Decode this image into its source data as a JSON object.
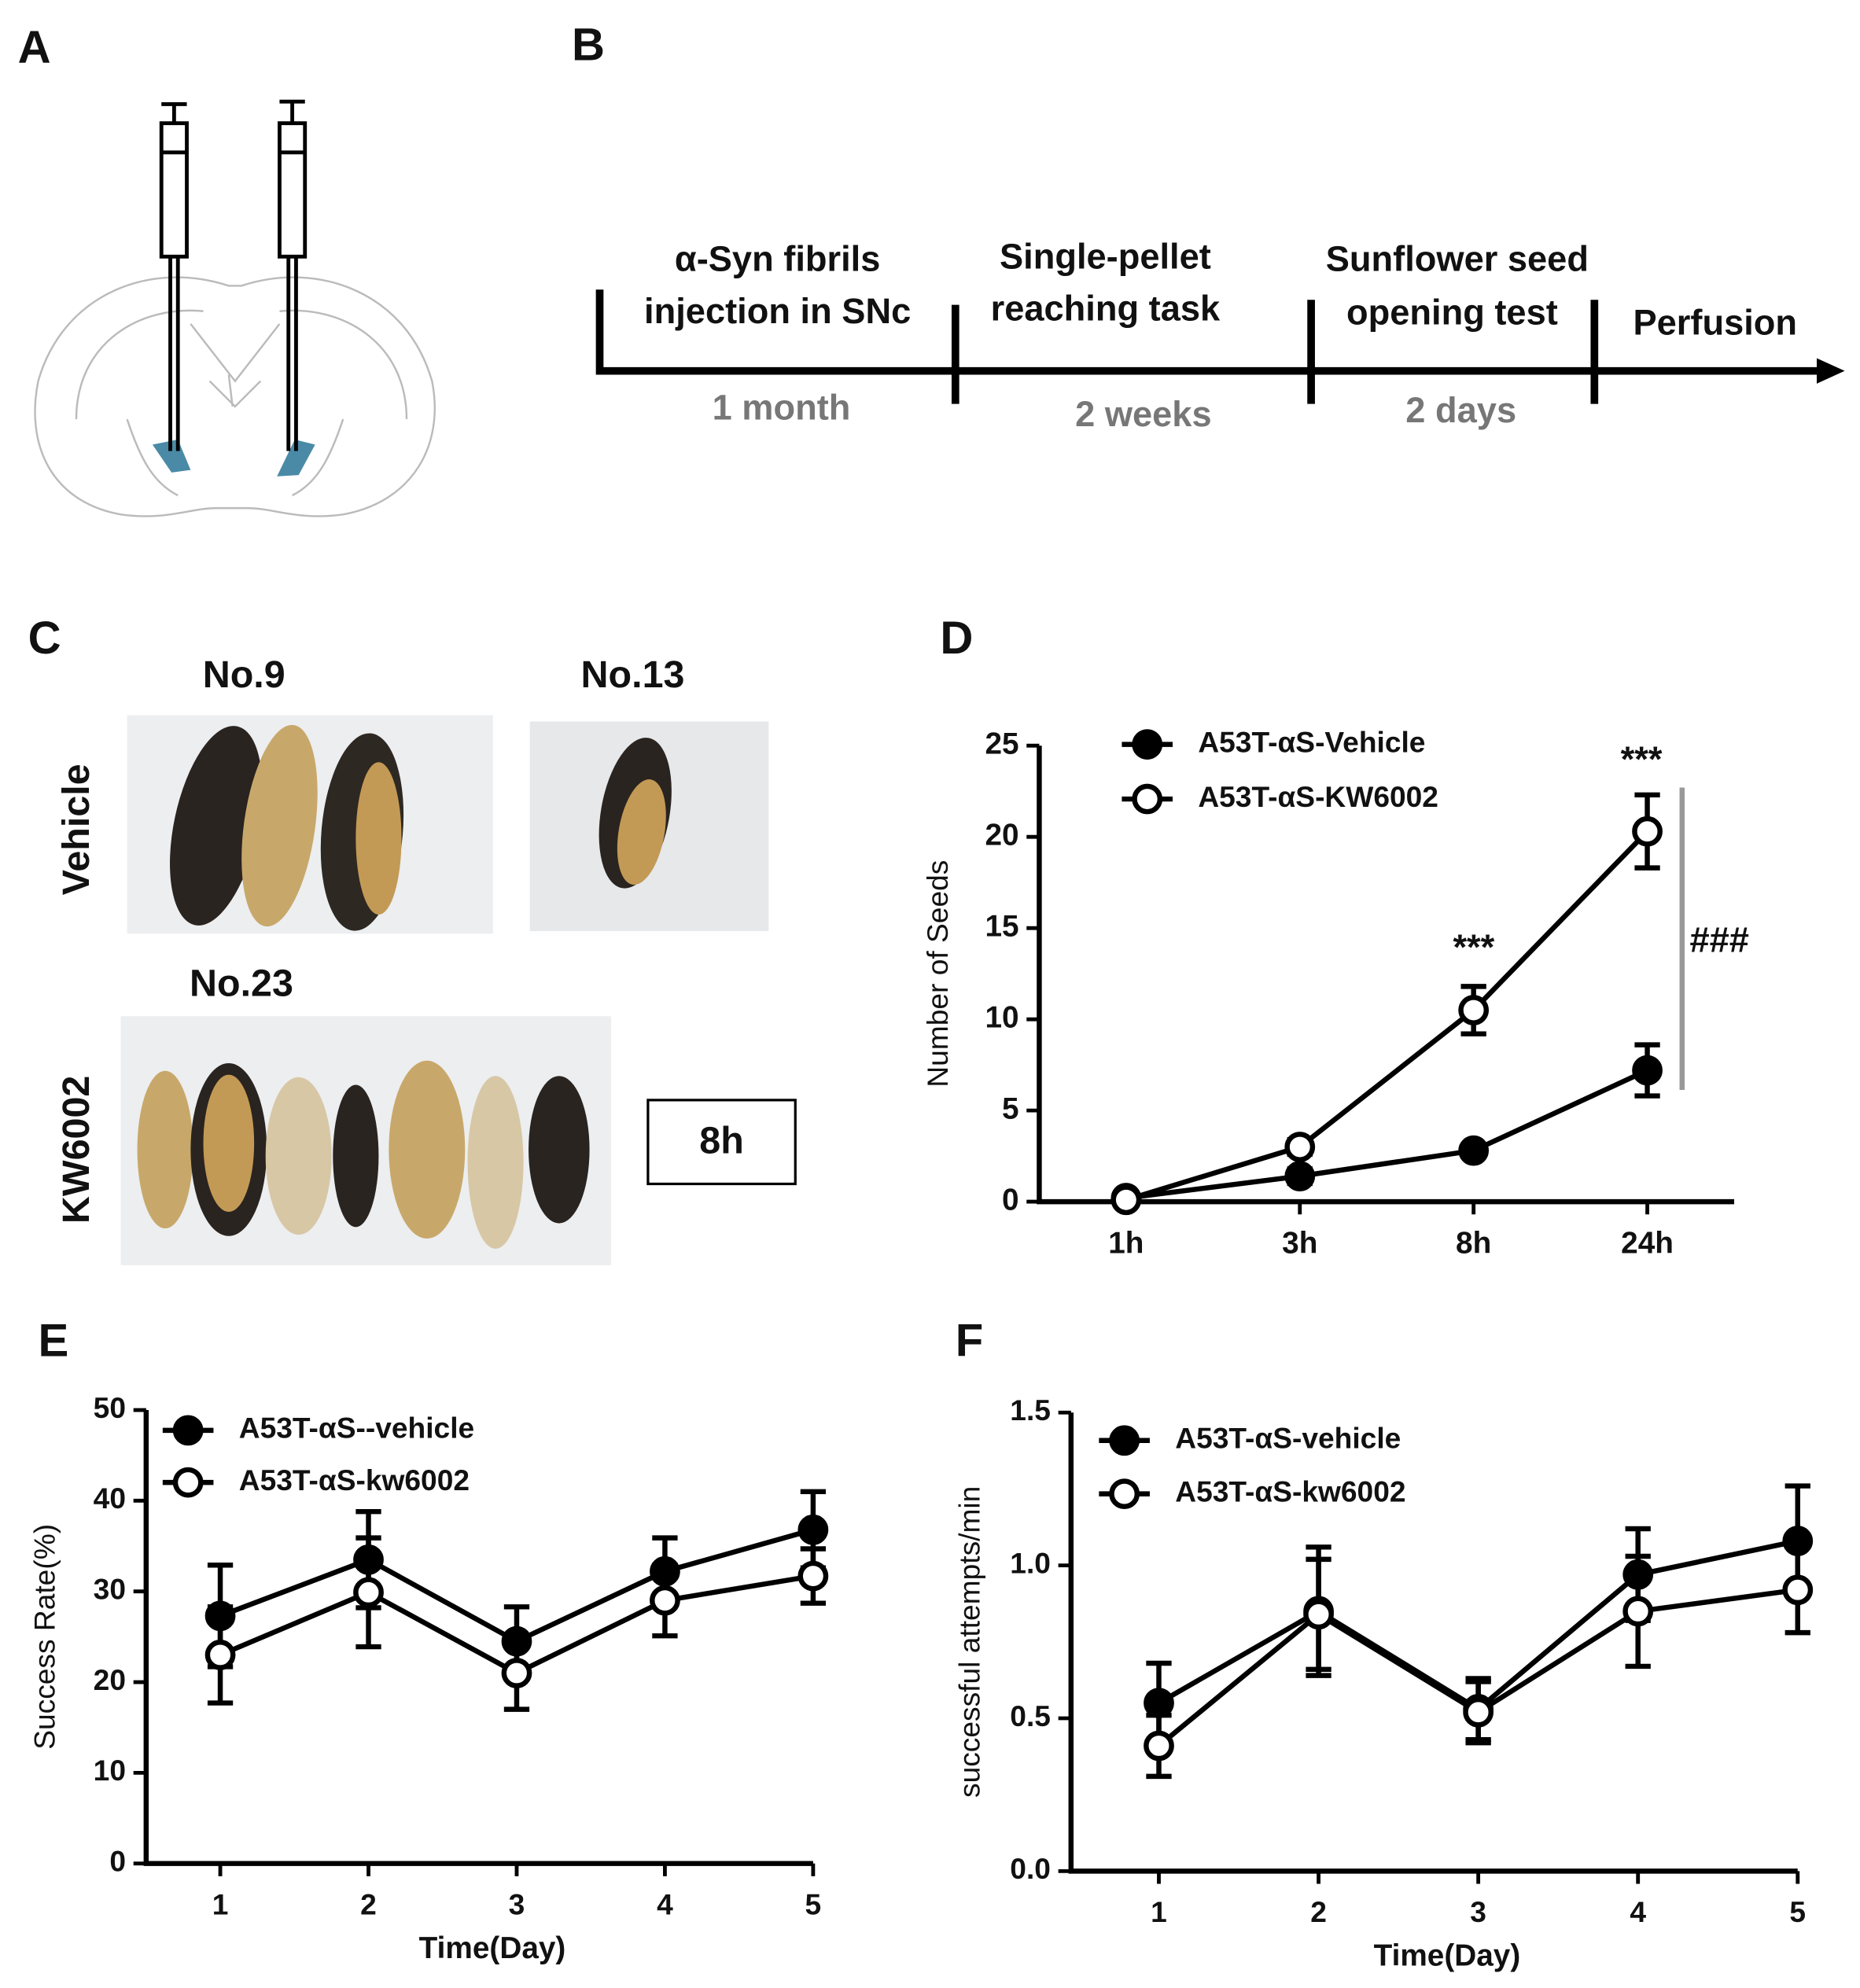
{
  "panels": {
    "a": "A",
    "b": "B",
    "c": "C",
    "d": "D",
    "e": "E",
    "f": "F"
  },
  "timeline": {
    "stages": [
      {
        "lines": [
          "α-Syn fibrils",
          "injection in SNc"
        ],
        "duration": "1 month"
      },
      {
        "lines": [
          "Single-pellet",
          "reaching task"
        ],
        "duration": "2 weeks"
      },
      {
        "lines": [
          "Sunflower seed",
          "opening test"
        ],
        "duration": "2 days"
      }
    ],
    "end": "Perfusion"
  },
  "photos": {
    "labels": [
      "No.9",
      "No.13",
      "No.23"
    ],
    "groups": [
      "Vehicle",
      "KW6002"
    ],
    "time": "8h"
  },
  "chart_data": [
    {
      "type": "line",
      "y_label": "Number of Seeds",
      "categories": [
        "1h",
        "3h",
        "8h",
        "24h"
      ],
      "ylim": [
        0,
        25
      ],
      "yticks": [
        0,
        5,
        10,
        15,
        20,
        25
      ],
      "series": [
        {
          "name": "A53T-αS-Vehicle",
          "color": "#000000",
          "marker": "filled",
          "values": [
            0.2,
            1.4,
            2.8,
            7.2
          ],
          "errors": [
            0.3,
            0.4,
            0.3,
            1.4
          ]
        },
        {
          "name": "A53T-αS-KW6002",
          "color": "#000000",
          "marker": "open",
          "values": [
            0.1,
            3.0,
            10.5,
            20.3
          ],
          "errors": [
            0.2,
            0.4,
            1.3,
            2.0
          ]
        }
      ],
      "annotations": [
        "***",
        "***",
        "###"
      ]
    },
    {
      "type": "line",
      "x_label": "Time(Day)",
      "y_label": "Success Rate(%)",
      "x": [
        1,
        2,
        3,
        4,
        5
      ],
      "xlim": [
        0.5,
        5
      ],
      "xticks": [
        1,
        2,
        3,
        4,
        5
      ],
      "ylim": [
        0,
        50
      ],
      "yticks": [
        0,
        10,
        20,
        30,
        40,
        50
      ],
      "series": [
        {
          "name": "A53T-αS--vehicle",
          "color": "#000000",
          "marker": "filled",
          "values": [
            27.3,
            33.5,
            24.5,
            32.2,
            36.8
          ],
          "errors": [
            5.6,
            5.3,
            3.8,
            3.7,
            4.2
          ]
        },
        {
          "name": "A53T-αS-kw6002",
          "color": "#000000",
          "marker": "open",
          "values": [
            23.0,
            29.9,
            21.0,
            29.0,
            31.7
          ],
          "errors": [
            5.3,
            6.0,
            4.0,
            3.9,
            3.0
          ]
        }
      ]
    },
    {
      "type": "line",
      "x_label": "Time(Day)",
      "y_label": "successful attempts/min",
      "x": [
        1,
        2,
        3,
        4,
        5
      ],
      "xlim": [
        0.45,
        5
      ],
      "xticks": [
        1,
        2,
        3,
        4,
        5
      ],
      "ylim": [
        0,
        1.5
      ],
      "yticks": [
        {
          "value": 0,
          "label": "0.0"
        },
        0.5,
        {
          "value": 1,
          "label": "1.0"
        },
        1.5
      ],
      "series": [
        {
          "name": "A53T-αS-vehicle",
          "color": "#000000",
          "marker": "filled",
          "values": [
            0.55,
            0.85,
            0.53,
            0.97,
            1.08
          ],
          "errors": [
            0.13,
            0.21,
            0.1,
            0.15,
            0.18
          ]
        },
        {
          "name": "A53T-αS-kw6002",
          "color": "#000000",
          "marker": "open",
          "values": [
            0.41,
            0.84,
            0.52,
            0.85,
            0.92
          ],
          "errors": [
            0.1,
            0.18,
            0.1,
            0.18,
            0.14
          ]
        }
      ]
    }
  ]
}
